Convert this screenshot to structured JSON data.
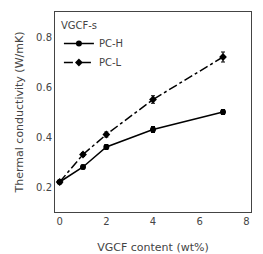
{
  "chart_data": {
    "type": "line",
    "xlabel": "VGCF content (wt%)",
    "ylabel": "Thermal conductivity (W/mK)",
    "legend_title": "VGCF-s",
    "series": [
      {
        "name": "PC-H",
        "color": "black",
        "marker": "circle",
        "line_style": "solid",
        "x": [
          0,
          1,
          2,
          4,
          7
        ],
        "values": [
          0.22,
          0.28,
          0.36,
          0.43,
          0.5
        ],
        "yerr": [
          0.005,
          0.008,
          0.01,
          0.012,
          0.01
        ]
      },
      {
        "name": "PC-L",
        "color": "black",
        "marker": "diamond",
        "line_style": "dashdot",
        "x": [
          0,
          1,
          2,
          4,
          7
        ],
        "values": [
          0.22,
          0.33,
          0.41,
          0.55,
          0.72
        ],
        "yerr": [
          0.005,
          0.008,
          0.01,
          0.015,
          0.02
        ]
      }
    ],
    "xlim": [
      -0.2,
      8.2
    ],
    "ylim": [
      0.1,
      0.9
    ],
    "xticks": [
      0,
      2,
      4,
      6,
      8
    ],
    "yticks": [
      0.2,
      0.4,
      0.6,
      0.8
    ],
    "grid": false,
    "legend": "upper left"
  }
}
